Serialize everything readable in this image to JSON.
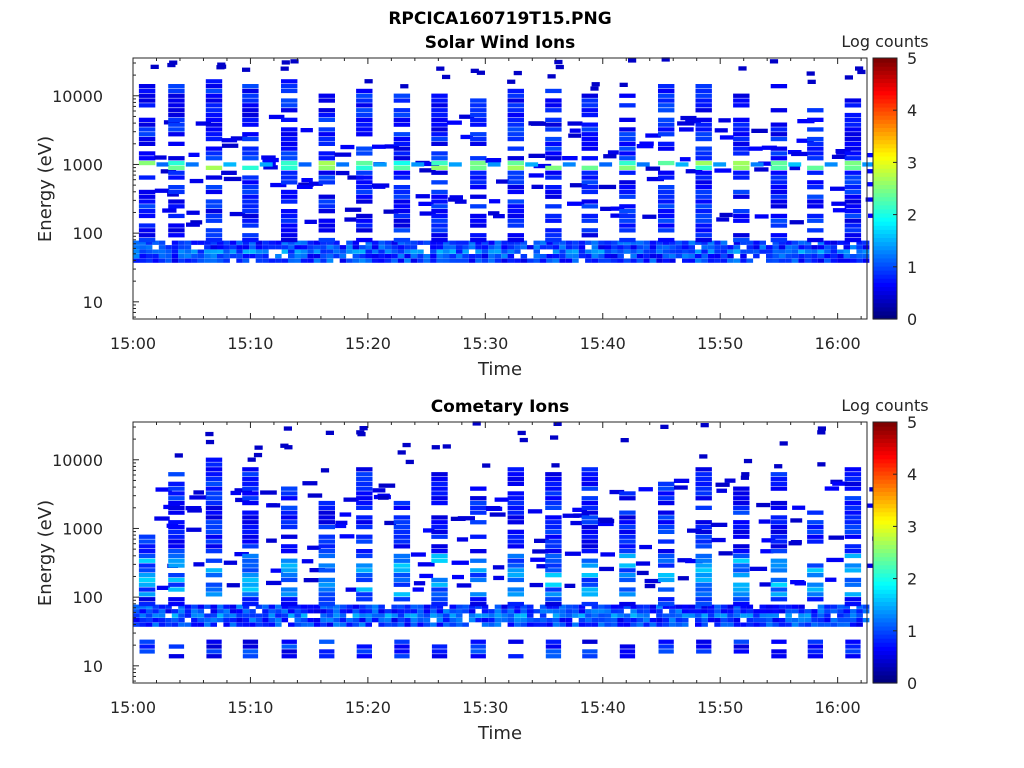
{
  "figure": {
    "title": "RPCICA160719T15.PNG"
  },
  "chart_data": [
    {
      "type": "heatmap",
      "title": "Solar Wind Ions",
      "xlabel": "Time",
      "ylabel": "Energy (eV)",
      "x_ticks": [
        "15:00",
        "15:10",
        "15:20",
        "15:30",
        "15:40",
        "15:50",
        "16:00"
      ],
      "y_ticks": [
        "10",
        "100",
        "1000",
        "10000"
      ],
      "y_scale": "log",
      "xlim_minutes": [
        0,
        62.5
      ],
      "ylim_log10": [
        0.75,
        4.55
      ],
      "colorbar": {
        "label": "Log counts",
        "ticks": [
          "0",
          "1",
          "2",
          "3",
          "4",
          "5"
        ],
        "range": [
          0,
          5
        ],
        "colormap": "jet"
      },
      "sweep_start_minutes": [
        0.4,
        2.9,
        6.1,
        9.2,
        12.5,
        15.7,
        18.9,
        22.1,
        25.3,
        28.6,
        31.8,
        35.0,
        38.1,
        41.3,
        44.6,
        47.8,
        51.0,
        54.2,
        57.3,
        60.5
      ],
      "sweep_peak_log10": [
        4.15,
        4.2,
        4.3,
        4.15,
        4.25,
        4.05,
        4.1,
        4.0,
        4.05,
        4.0,
        4.1,
        4.15,
        4.0,
        4.0,
        4.15,
        4.2,
        4.05,
        4.2,
        3.85,
        4.0
      ],
      "features": [
        {
          "name": "low-energy band",
          "energy_eV": [
            40,
            70
          ],
          "log_counts": 1.0
        },
        {
          "name": "solar wind beam",
          "energy_eV": 1000,
          "log_counts": 2.5
        }
      ]
    },
    {
      "type": "heatmap",
      "title": "Cometary Ions",
      "xlabel": "Time",
      "ylabel": "Energy (eV)",
      "x_ticks": [
        "15:00",
        "15:10",
        "15:20",
        "15:30",
        "15:40",
        "15:50",
        "16:00"
      ],
      "y_ticks": [
        "10",
        "100",
        "1000",
        "10000"
      ],
      "y_scale": "log",
      "xlim_minutes": [
        0,
        62.5
      ],
      "ylim_log10": [
        0.75,
        4.55
      ],
      "colorbar": {
        "label": "Log counts",
        "ticks": [
          "0",
          "1",
          "2",
          "3",
          "4",
          "5"
        ],
        "range": [
          0,
          5
        ],
        "colormap": "jet"
      },
      "sweep_start_minutes": [
        0.4,
        2.9,
        6.1,
        9.2,
        12.5,
        15.7,
        18.9,
        22.1,
        25.3,
        28.6,
        31.8,
        35.0,
        38.1,
        41.3,
        44.6,
        47.8,
        51.0,
        54.2,
        57.3,
        60.5
      ],
      "sweep_peak_log10": [
        3.0,
        3.9,
        4.1,
        3.9,
        3.7,
        3.5,
        3.9,
        3.4,
        3.8,
        3.7,
        3.9,
        3.8,
        3.9,
        3.7,
        3.7,
        3.9,
        3.6,
        3.8,
        3.3,
        3.9
      ],
      "features": [
        {
          "name": "low-energy band",
          "energy_eV": [
            40,
            70
          ],
          "log_counts": 1.0
        },
        {
          "name": "low-energy blocks",
          "energy_eV": [
            13,
            27
          ],
          "log_counts": 0.8
        }
      ]
    }
  ]
}
